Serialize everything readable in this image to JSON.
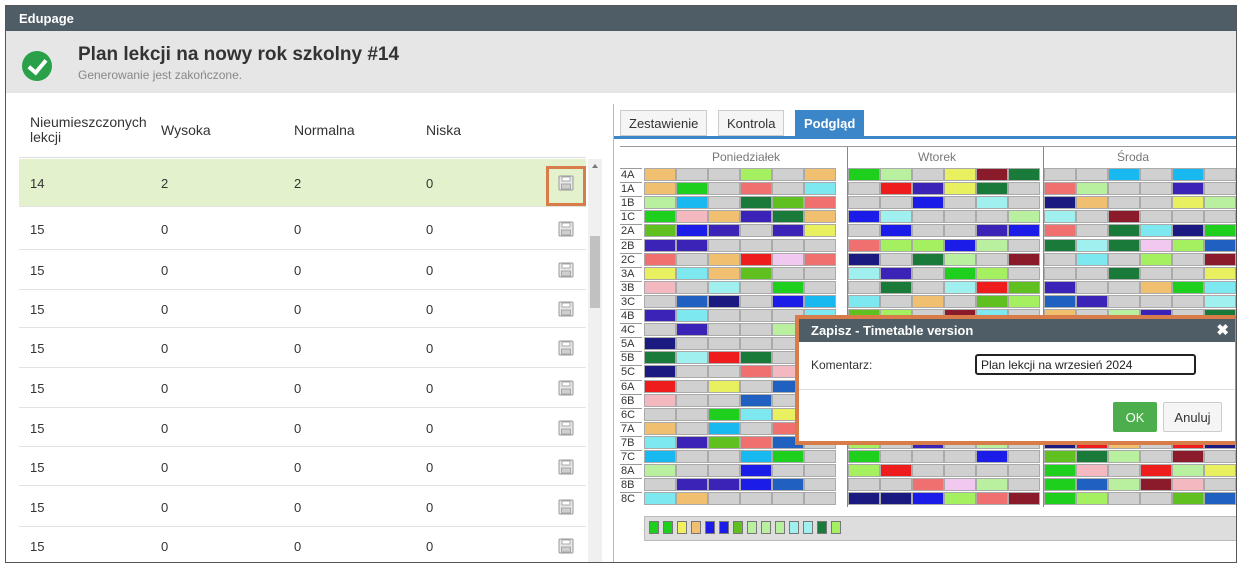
{
  "app": {
    "title": "Edupage"
  },
  "header": {
    "title": "Plan lekcji na nowy rok szkolny #14",
    "subtitle": "Generowanie jest zakończone."
  },
  "table": {
    "columns": [
      "Nieumieszczonych lekcji",
      "Wysoka",
      "Normalna",
      "Niska"
    ],
    "rows": [
      {
        "unplaced": "14",
        "high": "2",
        "normal": "2",
        "low": "0"
      },
      {
        "unplaced": "15",
        "high": "0",
        "normal": "0",
        "low": "0"
      },
      {
        "unplaced": "15",
        "high": "0",
        "normal": "0",
        "low": "0"
      },
      {
        "unplaced": "15",
        "high": "0",
        "normal": "0",
        "low": "0"
      },
      {
        "unplaced": "15",
        "high": "0",
        "normal": "0",
        "low": "0"
      },
      {
        "unplaced": "15",
        "high": "0",
        "normal": "0",
        "low": "0"
      },
      {
        "unplaced": "15",
        "high": "0",
        "normal": "0",
        "low": "0"
      },
      {
        "unplaced": "15",
        "high": "0",
        "normal": "0",
        "low": "0"
      },
      {
        "unplaced": "15",
        "high": "0",
        "normal": "0",
        "low": "0"
      },
      {
        "unplaced": "15",
        "high": "0",
        "normal": "0",
        "low": "0"
      }
    ]
  },
  "tabs": [
    "Zestawienie",
    "Kontrola",
    "Podgląd"
  ],
  "preview": {
    "days": [
      "Poniedziałek",
      "Wtorek",
      "Środa"
    ],
    "classes": [
      "4A",
      "1A",
      "1B",
      "1C",
      "2A",
      "2B",
      "2C",
      "3A",
      "3B",
      "3C",
      "4B",
      "4C",
      "5A",
      "5B",
      "5C",
      "6A",
      "6B",
      "6C",
      "7A",
      "7B",
      "7C",
      "8A",
      "8B",
      "8C"
    ]
  },
  "dialog": {
    "title": "Zapisz - Timetable version",
    "close": "✖",
    "label": "Komentarz:",
    "value": "Plan lekcji na wrzesień 2024",
    "ok": "OK",
    "cancel": "Anuluj"
  },
  "colors": {
    "accent": "#3a86c8",
    "header_bar": "#4e5d66",
    "success": "#2aa148",
    "selected_row": "#e3f1cc",
    "highlight_border": "#d87d4a",
    "palette": [
      "#f4b8c0",
      "#3b23b8",
      "#1c1ce8",
      "#8b1a2a",
      "#e8f060",
      "#1ecf1e",
      "#7de8f0",
      "#ee1c1c",
      "#f07070",
      "#1a7a3a",
      "#a5f060",
      "#f0c070",
      "#2060c0",
      "#b8f0a0",
      "#1a1a80",
      "#f0c8f0",
      "#60c020",
      "#a0f0f0",
      "#d0d0d0",
      "#18b8f0"
    ]
  }
}
